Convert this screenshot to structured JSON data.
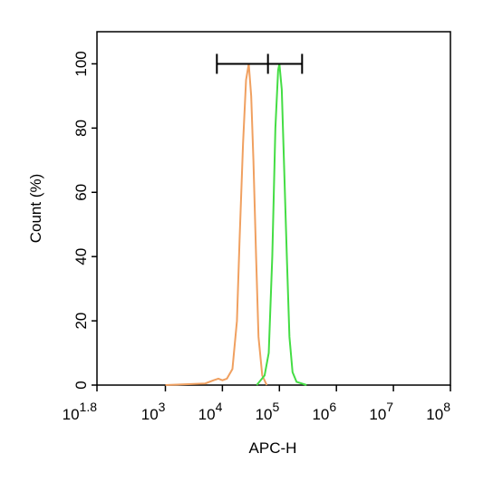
{
  "chart_data": {
    "type": "line",
    "x_label": "APC-H",
    "y_label": "Count  (%)",
    "log_x": true,
    "xlim": [
      63.0957,
      100000000
    ],
    "xticks": [
      {
        "value": 63.0957,
        "label": "10",
        "exponent": "1.8"
      },
      {
        "value": 1000,
        "label": "10",
        "exponent": "3"
      },
      {
        "value": 10000,
        "label": "10",
        "exponent": "4"
      },
      {
        "value": 100000,
        "label": "10",
        "exponent": "5"
      },
      {
        "value": 1000000,
        "label": "10",
        "exponent": "6"
      },
      {
        "value": 10000000,
        "label": "10",
        "exponent": "7"
      },
      {
        "value": 100000000,
        "label": "10",
        "exponent": "8"
      }
    ],
    "ylim": [
      0,
      110
    ],
    "yticks": [
      0,
      20,
      40,
      60,
      80,
      100
    ],
    "series": [
      {
        "color": "#f0a060",
        "x": [
          1000,
          5000,
          7000,
          8500,
          10000,
          12000,
          15000,
          18000,
          20000,
          23000,
          26000,
          29000,
          32000,
          35000,
          39000,
          43000,
          50000,
          60000
        ],
        "values": [
          0,
          0.5,
          1.5,
          2,
          1.5,
          2,
          5,
          20,
          45,
          75,
          95,
          100,
          90,
          70,
          40,
          15,
          3,
          0
        ]
      },
      {
        "color": "#44dd44",
        "x": [
          40000,
          55000,
          65000,
          75000,
          85000,
          95000,
          100000,
          110000,
          120000,
          135000,
          150000,
          170000,
          200000,
          300000
        ],
        "values": [
          0,
          3,
          10,
          40,
          80,
          98,
          100,
          92,
          70,
          40,
          15,
          4,
          1,
          0
        ]
      }
    ],
    "gate": {
      "x": [
        8000,
        63000,
        250000
      ],
      "y": 100
    }
  }
}
